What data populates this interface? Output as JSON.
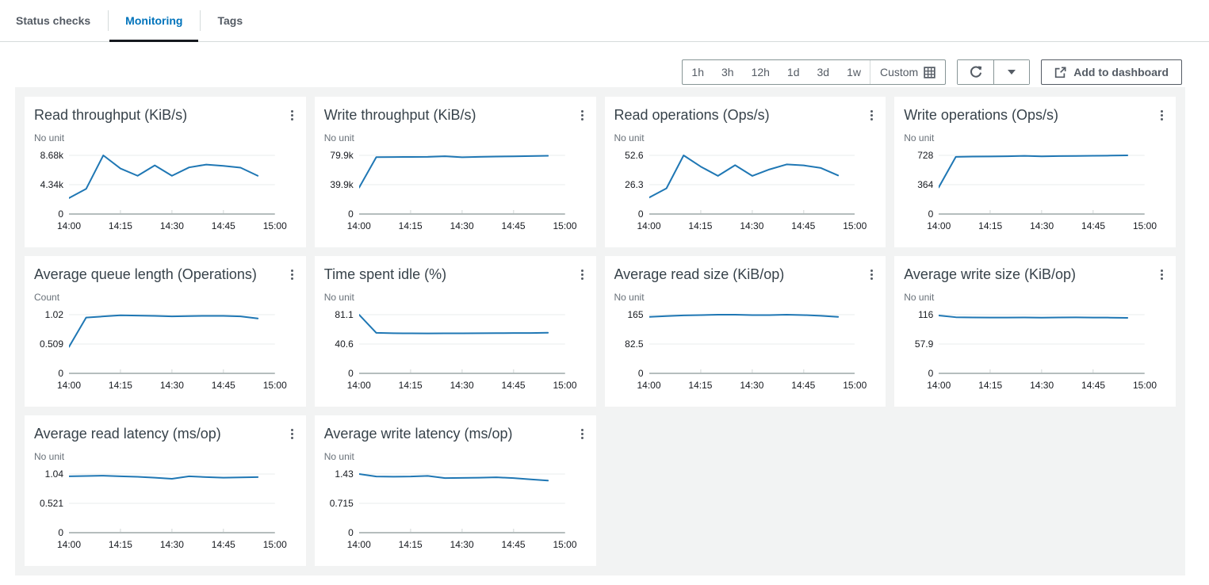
{
  "tabs": {
    "items": [
      {
        "label": "Status checks",
        "active": false
      },
      {
        "label": "Monitoring",
        "active": true
      },
      {
        "label": "Tags",
        "active": false
      }
    ]
  },
  "toolbar": {
    "time_ranges": [
      "1h",
      "3h",
      "12h",
      "1d",
      "3d",
      "1w"
    ],
    "custom_label": "Custom",
    "add_to_dashboard_label": "Add to dashboard",
    "icons": {
      "calendar": "calendar-grid-icon",
      "refresh": "refresh-icon",
      "caret": "caret-down-icon",
      "external_link": "external-link-icon",
      "chart_menu": "vertical-ellipsis-icon"
    }
  },
  "colors": {
    "accent": "#0073bb",
    "series_line": "#1f77b4",
    "active_tab_underline": "#16191f",
    "panel_background": "#f2f3f3",
    "control_border": "#879596",
    "secondary_text": "#545b64"
  },
  "chart_data": [
    {
      "type": "line",
      "title": "Read throughput (KiB/s)",
      "unit_label": "No unit",
      "y_ticks": [
        "8.68k",
        "4.34k",
        "0"
      ],
      "y_max": 8680,
      "x_labels": [
        "14:00",
        "14:15",
        "14:30",
        "14:45",
        "15:00"
      ],
      "x_times": [
        "14:00",
        "14:05",
        "14:10",
        "14:15",
        "14:20",
        "14:25",
        "14:30",
        "14:35",
        "14:40",
        "14:45",
        "14:50",
        "14:55"
      ],
      "values": [
        2360,
        3720,
        8680,
        6740,
        5660,
        7200,
        5660,
        6900,
        7320,
        7130,
        6860,
        5660
      ]
    },
    {
      "type": "line",
      "title": "Write throughput (KiB/s)",
      "unit_label": "No unit",
      "y_ticks": [
        "79.9k",
        "39.9k",
        "0"
      ],
      "y_max": 79900,
      "x_labels": [
        "14:00",
        "14:15",
        "14:30",
        "14:45",
        "15:00"
      ],
      "x_times": [
        "14:00",
        "14:05",
        "14:10",
        "14:15",
        "14:20",
        "14:25",
        "14:30",
        "14:35",
        "14:40",
        "14:45",
        "14:50",
        "14:55"
      ],
      "values": [
        36000,
        77500,
        77600,
        77800,
        77900,
        78700,
        77400,
        77900,
        78300,
        78600,
        78900,
        79300
      ]
    },
    {
      "type": "line",
      "title": "Read operations (Ops/s)",
      "unit_label": "No unit",
      "y_ticks": [
        "52.6",
        "26.3",
        "0"
      ],
      "y_max": 52.6,
      "x_labels": [
        "14:00",
        "14:15",
        "14:30",
        "14:45",
        "15:00"
      ],
      "x_times": [
        "14:00",
        "14:05",
        "14:10",
        "14:15",
        "14:20",
        "14:25",
        "14:30",
        "14:35",
        "14:40",
        "14:45",
        "14:50",
        "14:55"
      ],
      "values": [
        14.8,
        23.0,
        52.6,
        42.5,
        34.2,
        43.8,
        34.2,
        40.0,
        44.5,
        43.6,
        41.3,
        34.6
      ]
    },
    {
      "type": "line",
      "title": "Write operations (Ops/s)",
      "unit_label": "No unit",
      "y_ticks": [
        "728",
        "364",
        "0"
      ],
      "y_max": 728,
      "x_labels": [
        "14:00",
        "14:15",
        "14:30",
        "14:45",
        "15:00"
      ],
      "x_times": [
        "14:00",
        "14:05",
        "14:10",
        "14:15",
        "14:20",
        "14:25",
        "14:30",
        "14:35",
        "14:40",
        "14:45",
        "14:50",
        "14:55"
      ],
      "values": [
        330,
        710,
        713,
        715,
        717,
        722,
        716,
        719,
        721,
        723,
        725,
        728
      ]
    },
    {
      "type": "line",
      "title": "Average queue length (Operations)",
      "unit_label": "Count",
      "y_ticks": [
        "1.02",
        "0.509",
        "0"
      ],
      "y_max": 1.02,
      "x_labels": [
        "14:00",
        "14:15",
        "14:30",
        "14:45",
        "15:00"
      ],
      "x_times": [
        "14:00",
        "14:05",
        "14:10",
        "14:15",
        "14:20",
        "14:25",
        "14:30",
        "14:35",
        "14:40",
        "14:45",
        "14:50",
        "14:55"
      ],
      "values": [
        0.46,
        0.97,
        0.99,
        1.01,
        1.005,
        1.0,
        0.99,
        0.995,
        1.0,
        1.0,
        0.99,
        0.955
      ]
    },
    {
      "type": "line",
      "title": "Time spent idle (%)",
      "unit_label": "No unit",
      "y_ticks": [
        "81.1",
        "40.6",
        "0"
      ],
      "y_max": 81.1,
      "x_labels": [
        "14:00",
        "14:15",
        "14:30",
        "14:45",
        "15:00"
      ],
      "x_times": [
        "14:00",
        "14:05",
        "14:10",
        "14:15",
        "14:20",
        "14:25",
        "14:30",
        "14:35",
        "14:40",
        "14:45",
        "14:50",
        "14:55"
      ],
      "values": [
        81.1,
        56.0,
        55.5,
        55.3,
        55.2,
        55.4,
        55.3,
        55.5,
        55.6,
        55.7,
        55.8,
        56.2
      ]
    },
    {
      "type": "line",
      "title": "Average read size (KiB/op)",
      "unit_label": "No unit",
      "y_ticks": [
        "165",
        "82.5",
        "0"
      ],
      "y_max": 165,
      "x_labels": [
        "14:00",
        "14:15",
        "14:30",
        "14:45",
        "15:00"
      ],
      "x_times": [
        "14:00",
        "14:05",
        "14:10",
        "14:15",
        "14:20",
        "14:25",
        "14:30",
        "14:35",
        "14:40",
        "14:45",
        "14:50",
        "14:55"
      ],
      "values": [
        159,
        161,
        163,
        164,
        165,
        165,
        164,
        164,
        165,
        164,
        162,
        159
      ]
    },
    {
      "type": "line",
      "title": "Average write size (KiB/op)",
      "unit_label": "No unit",
      "y_ticks": [
        "116",
        "57.9",
        "0"
      ],
      "y_max": 116,
      "x_labels": [
        "14:00",
        "14:15",
        "14:30",
        "14:45",
        "15:00"
      ],
      "x_times": [
        "14:00",
        "14:05",
        "14:10",
        "14:15",
        "14:20",
        "14:25",
        "14:30",
        "14:35",
        "14:40",
        "14:45",
        "14:50",
        "14:55"
      ],
      "values": [
        114.5,
        111,
        110.5,
        110.3,
        110.4,
        110.6,
        110.2,
        110.5,
        110.8,
        110.4,
        110.2,
        109.8
      ]
    },
    {
      "type": "line",
      "title": "Average read latency (ms/op)",
      "unit_label": "No unit",
      "y_ticks": [
        "1.04",
        "0.521",
        "0"
      ],
      "y_max": 1.04,
      "x_labels": [
        "14:00",
        "14:15",
        "14:30",
        "14:45",
        "15:00"
      ],
      "x_times": [
        "14:00",
        "14:05",
        "14:10",
        "14:15",
        "14:20",
        "14:25",
        "14:30",
        "14:35",
        "14:40",
        "14:45",
        "14:50",
        "14:55"
      ],
      "values": [
        1.0,
        1.005,
        1.01,
        1.0,
        0.99,
        0.975,
        0.955,
        1.0,
        0.985,
        0.975,
        0.98,
        0.985
      ]
    },
    {
      "type": "line",
      "title": "Average write latency (ms/op)",
      "unit_label": "No unit",
      "y_ticks": [
        "1.43",
        "0.715",
        "0"
      ],
      "y_max": 1.43,
      "x_labels": [
        "14:00",
        "14:15",
        "14:30",
        "14:45",
        "15:00"
      ],
      "x_times": [
        "14:00",
        "14:05",
        "14:10",
        "14:15",
        "14:20",
        "14:25",
        "14:30",
        "14:35",
        "14:40",
        "14:45",
        "14:50",
        "14:55"
      ],
      "values": [
        1.43,
        1.37,
        1.365,
        1.37,
        1.385,
        1.33,
        1.335,
        1.34,
        1.35,
        1.33,
        1.3,
        1.27
      ]
    }
  ]
}
